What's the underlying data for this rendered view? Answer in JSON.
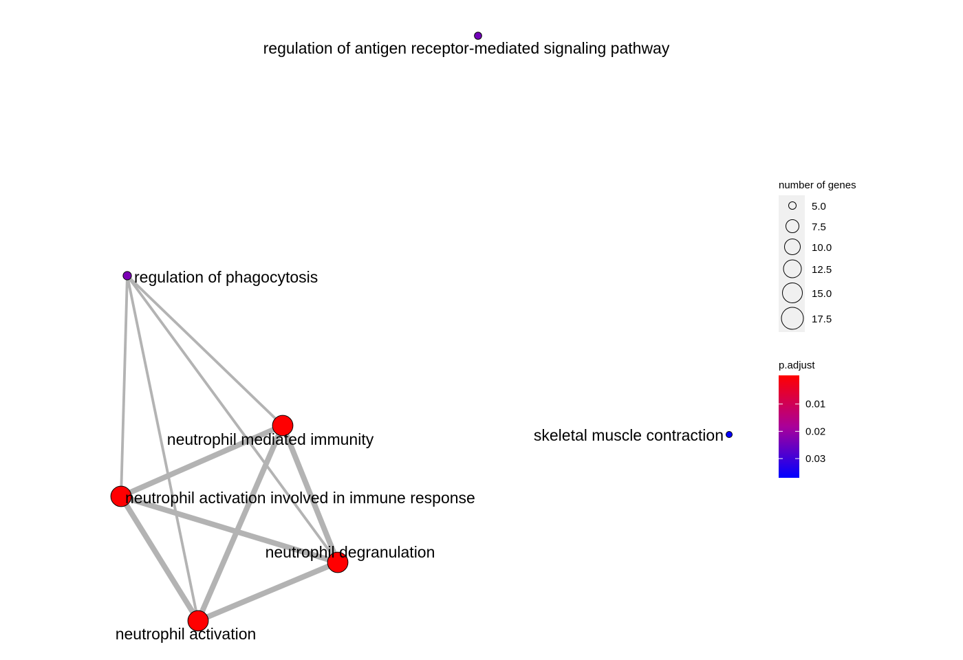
{
  "colors": {
    "edge": "#b3b3b3",
    "high": "#ff0000",
    "low": "#0000ff",
    "legend_panel": "#f0f0f0"
  },
  "padjust_range": [
    0.0005,
    0.0375
  ],
  "nodes": [
    {
      "id": "antigen",
      "label": "regulation of antigen receptor-mediated signaling pathway",
      "genes": 5,
      "p_adjust": 0.025
    },
    {
      "id": "phago",
      "label": "regulation of phagocytosis",
      "genes": 6,
      "p_adjust": 0.024
    },
    {
      "id": "nmi",
      "label": "neutrophil mediated immunity",
      "genes": 17,
      "p_adjust": 0.0006
    },
    {
      "id": "nair",
      "label": "neutrophil activation involved in immune response",
      "genes": 17,
      "p_adjust": 0.0006
    },
    {
      "id": "ndeg",
      "label": "neutrophil degranulation",
      "genes": 17,
      "p_adjust": 0.0006
    },
    {
      "id": "nact",
      "label": "neutrophil activation",
      "genes": 17,
      "p_adjust": 0.0006
    },
    {
      "id": "skel",
      "label": "skeletal muscle contraction",
      "genes": 4,
      "p_adjust": 0.037
    }
  ],
  "edges": [
    {
      "source": "phago",
      "target": "nmi",
      "weight": 0.25
    },
    {
      "source": "phago",
      "target": "nair",
      "weight": 0.25
    },
    {
      "source": "phago",
      "target": "ndeg",
      "weight": 0.25
    },
    {
      "source": "phago",
      "target": "nact",
      "weight": 0.25
    },
    {
      "source": "nmi",
      "target": "nair",
      "weight": 1.0
    },
    {
      "source": "nmi",
      "target": "ndeg",
      "weight": 1.0
    },
    {
      "source": "nmi",
      "target": "nact",
      "weight": 1.0
    },
    {
      "source": "nair",
      "target": "ndeg",
      "weight": 1.0
    },
    {
      "source": "nair",
      "target": "nact",
      "weight": 1.0
    },
    {
      "source": "ndeg",
      "target": "nact",
      "weight": 1.0
    }
  ],
  "legend": {
    "size_title": "number of genes",
    "size_items": [
      "5.0",
      "7.5",
      "10.0",
      "12.5",
      "15.0",
      "17.5"
    ],
    "color_title": "p.adjust",
    "color_ticks": [
      {
        "label": "0.01",
        "value": 0.01
      },
      {
        "label": "0.02",
        "value": 0.02
      },
      {
        "label": "0.03",
        "value": 0.03
      }
    ]
  }
}
